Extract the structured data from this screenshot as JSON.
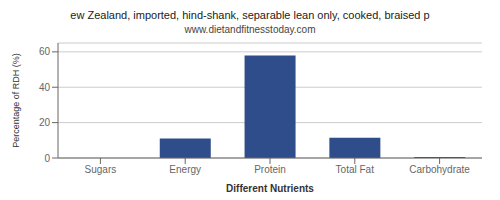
{
  "chart_data": {
    "type": "bar",
    "title": "ew Zealand, imported, hind-shank, separable lean only, cooked, braised p",
    "subtitle": "www.dietandfitnesstoday.com",
    "xlabel": "Different Nutrients",
    "ylabel": "Percentage of RDH (%)",
    "categories": [
      "Sugars",
      "Energy",
      "Protein",
      "Total Fat",
      "Carbohydrate"
    ],
    "values": [
      0,
      11,
      58,
      11.5,
      0.5
    ],
    "color": "#2e4d8a",
    "ylim": [
      0,
      65
    ],
    "yticks": [
      0,
      20,
      40,
      60
    ],
    "grid": true
  }
}
